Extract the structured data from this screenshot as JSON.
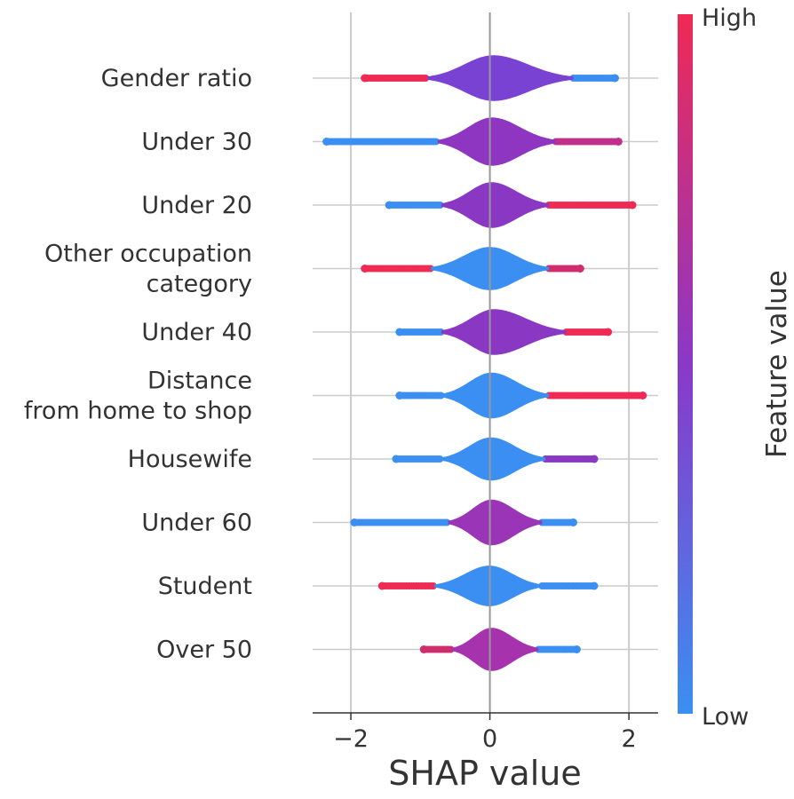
{
  "chart_data": {
    "type": "violin",
    "title": "",
    "xlabel": "SHAP value",
    "xlim": [
      -2.55,
      2.42
    ],
    "xticks": [
      {
        "value": -2,
        "label": "−2"
      },
      {
        "value": 0,
        "label": "0"
      },
      {
        "value": 2,
        "label": "2"
      }
    ],
    "grid_x": true,
    "colorbar": {
      "label": "Feature value",
      "high_label": "High",
      "low_label": "Low",
      "low_color": "#3b8ff2",
      "mid_color": "#8a38c8",
      "high_color": "#ef2a54"
    },
    "features": [
      {
        "label": "Gender ratio",
        "dot_min": -1.8,
        "dot_max": 1.8,
        "body_min": -0.9,
        "body_max": 1.2,
        "half_height": 0.36,
        "body_color": "#7a42d2",
        "left_color": "#ef2a54",
        "right_color": "#3b8ff2"
      },
      {
        "label": "Under 30",
        "dot_min": -2.35,
        "dot_max": 1.85,
        "body_min": -0.75,
        "body_max": 0.95,
        "half_height": 0.38,
        "body_color": "#8e35c2",
        "left_color": "#3b8ff2",
        "right_color": "#c0308a"
      },
      {
        "label": "Under 20",
        "dot_min": -1.45,
        "dot_max": 2.05,
        "body_min": -0.7,
        "body_max": 0.85,
        "half_height": 0.36,
        "body_color": "#8a38c4",
        "left_color": "#3b8ff2",
        "right_color": "#ef2a54"
      },
      {
        "label": "Other occupation\ncategory",
        "dot_min": -1.8,
        "dot_max": 1.3,
        "body_min": -0.85,
        "body_max": 0.85,
        "half_height": 0.34,
        "body_color": "#3b8ff2",
        "left_color": "#ef2a54",
        "right_color": "#d02d6c"
      },
      {
        "label": "Under 40",
        "dot_min": -1.3,
        "dot_max": 1.7,
        "body_min": -0.7,
        "body_max": 1.1,
        "half_height": 0.36,
        "body_color": "#8a38c4",
        "left_color": "#3b8ff2",
        "right_color": "#ef2a54"
      },
      {
        "label": "Distance\nfrom home to shop",
        "dot_min": -1.3,
        "dot_max": 2.2,
        "body_min": -0.7,
        "body_max": 0.85,
        "half_height": 0.36,
        "body_color": "#3b8ff2",
        "left_color": "#3b8ff2",
        "right_color": "#ef2a54"
      },
      {
        "label": "Housewife",
        "dot_min": -1.35,
        "dot_max": 1.5,
        "body_min": -0.7,
        "body_max": 0.8,
        "half_height": 0.34,
        "body_color": "#3b8ff2",
        "left_color": "#3b8ff2",
        "right_color": "#8a38c4"
      },
      {
        "label": "Under 60",
        "dot_min": -1.95,
        "dot_max": 1.2,
        "body_min": -0.6,
        "body_max": 0.75,
        "half_height": 0.36,
        "body_color": "#9a35b8",
        "left_color": "#3b8ff2",
        "right_color": "#3b8ff2"
      },
      {
        "label": "Student",
        "dot_min": -1.55,
        "dot_max": 1.5,
        "body_min": -0.8,
        "body_max": 0.75,
        "half_height": 0.32,
        "body_color": "#3b8ff2",
        "left_color": "#ef2a54",
        "right_color": "#3b8ff2"
      },
      {
        "label": "Over 50",
        "dot_min": -0.95,
        "dot_max": 1.25,
        "body_min": -0.55,
        "body_max": 0.7,
        "half_height": 0.34,
        "body_color": "#a632ae",
        "left_color": "#d02d6c",
        "right_color": "#3b8ff2"
      }
    ]
  }
}
